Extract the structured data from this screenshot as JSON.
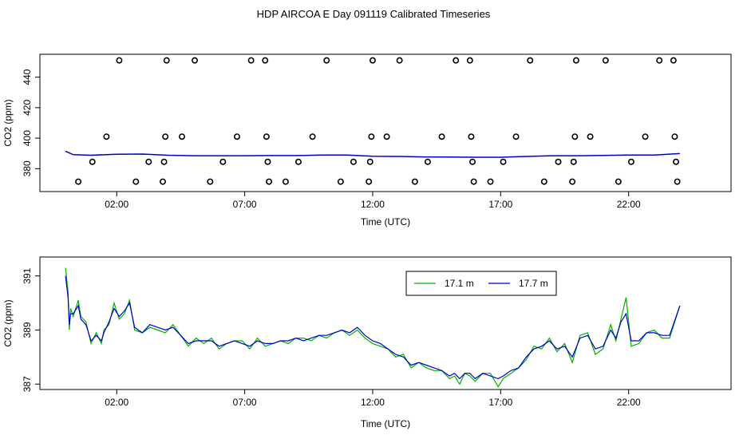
{
  "title": "HDP AIRCOA E  Day 091119  Calibrated Timeseries",
  "panels": {
    "top": {
      "xlabel": "Time (UTC)",
      "ylabel": "CO2 (ppm)",
      "x_ticks": [
        "02:00",
        "07:00",
        "12:00",
        "17:00",
        "22:00"
      ],
      "y_ticks": [
        "380",
        "400",
        "420",
        "440"
      ]
    },
    "bottom": {
      "xlabel": "Time (UTC)",
      "ylabel": "CO2 (ppm)",
      "x_ticks": [
        "02:00",
        "07:00",
        "12:00",
        "17:00",
        "22:00"
      ],
      "y_ticks": [
        "387",
        "389",
        "391"
      ],
      "legend": [
        "17.1 m",
        "17.7 m"
      ]
    }
  },
  "colors": {
    "series_17_1": "#00b000",
    "series_17_7": "#0000cc",
    "axis": "#000000"
  },
  "chart_data": [
    {
      "type": "scatter",
      "title": "HDP AIRCOA E  Day 091119  Calibrated Timeseries",
      "xlabel": "Time (UTC)",
      "ylabel": "CO2 (ppm)",
      "x_unit": "hours UTC",
      "xlim": [
        -1.0,
        26.0
      ],
      "ylim": [
        365,
        455
      ],
      "series": [
        {
          "role": "calibration-points",
          "marker": "circle",
          "points": [
            [
              0.5,
              371.5
            ],
            [
              1.05,
              384.5
            ],
            [
              1.6,
              401.0
            ],
            [
              2.1,
              451.0
            ],
            [
              2.75,
              371.5
            ],
            [
              3.25,
              384.5
            ],
            [
              3.8,
              371.5
            ],
            [
              3.85,
              384.5
            ],
            [
              3.9,
              401.0
            ],
            [
              3.95,
              451.0
            ],
            [
              4.55,
              401.0
            ],
            [
              5.05,
              451.0
            ],
            [
              5.65,
              371.5
            ],
            [
              6.15,
              384.5
            ],
            [
              6.7,
              401.0
            ],
            [
              7.25,
              451.0
            ],
            [
              7.8,
              451.0
            ],
            [
              7.85,
              401.0
            ],
            [
              7.9,
              384.5
            ],
            [
              7.95,
              371.5
            ],
            [
              8.6,
              371.5
            ],
            [
              9.1,
              384.5
            ],
            [
              9.65,
              401.0
            ],
            [
              10.2,
              451.0
            ],
            [
              10.75,
              371.5
            ],
            [
              11.25,
              384.5
            ],
            [
              11.85,
              371.5
            ],
            [
              11.9,
              384.5
            ],
            [
              11.95,
              401.0
            ],
            [
              12.0,
              451.0
            ],
            [
              12.55,
              401.0
            ],
            [
              13.05,
              451.0
            ],
            [
              13.65,
              371.5
            ],
            [
              14.15,
              384.5
            ],
            [
              14.7,
              401.0
            ],
            [
              15.25,
              451.0
            ],
            [
              15.8,
              451.0
            ],
            [
              15.85,
              401.0
            ],
            [
              15.9,
              384.5
            ],
            [
              15.95,
              371.5
            ],
            [
              16.6,
              371.5
            ],
            [
              17.1,
              384.5
            ],
            [
              17.6,
              401.0
            ],
            [
              18.15,
              451.0
            ],
            [
              18.7,
              371.5
            ],
            [
              19.25,
              384.5
            ],
            [
              19.8,
              371.5
            ],
            [
              19.85,
              384.5
            ],
            [
              19.9,
              401.0
            ],
            [
              19.95,
              451.0
            ],
            [
              20.5,
              401.0
            ],
            [
              21.1,
              451.0
            ],
            [
              21.6,
              371.5
            ],
            [
              22.1,
              384.5
            ],
            [
              22.65,
              401.0
            ],
            [
              23.2,
              451.0
            ],
            [
              23.75,
              451.0
            ],
            [
              23.8,
              401.0
            ],
            [
              23.85,
              384.5
            ],
            [
              23.9,
              371.5
            ]
          ]
        },
        {
          "role": "ambient-line",
          "x": [
            0,
            0.3,
            1,
            2,
            3,
            4,
            5,
            6,
            7,
            8,
            9,
            10,
            11,
            12,
            13,
            14,
            15,
            16,
            17,
            18,
            19,
            20,
            21,
            22,
            23,
            24
          ],
          "values": [
            391.5,
            389.2,
            388.8,
            389.5,
            389.6,
            388.8,
            388.5,
            388.5,
            388.5,
            388.6,
            388.6,
            388.9,
            388.9,
            388.2,
            388.0,
            387.7,
            387.6,
            387.5,
            387.5,
            388.0,
            388.5,
            388.5,
            388.7,
            388.9,
            388.9,
            389.9
          ]
        }
      ]
    },
    {
      "type": "line",
      "xlabel": "Time (UTC)",
      "ylabel": "CO2 (ppm)",
      "x_unit": "hours UTC",
      "xlim": [
        -1.0,
        26.0
      ],
      "ylim": [
        386.8,
        391.7
      ],
      "legend_position": "top-right",
      "series": [
        {
          "name": "17.1 m",
          "x": [
            0,
            0.1,
            0.15,
            0.2,
            0.3,
            0.5,
            0.6,
            0.8,
            1.0,
            1.2,
            1.4,
            1.5,
            1.7,
            1.9,
            2.1,
            2.3,
            2.5,
            2.7,
            3.0,
            3.3,
            3.6,
            3.9,
            4.2,
            4.5,
            4.8,
            5.1,
            5.4,
            5.7,
            6.0,
            6.3,
            6.6,
            6.9,
            7.2,
            7.5,
            7.8,
            8.1,
            8.4,
            8.7,
            9.0,
            9.3,
            9.6,
            9.9,
            10.2,
            10.5,
            10.8,
            11.1,
            11.4,
            11.7,
            12.0,
            12.3,
            12.6,
            12.9,
            13.2,
            13.5,
            13.8,
            14.1,
            14.4,
            14.7,
            15.0,
            15.2,
            15.4,
            15.6,
            15.8,
            16.0,
            16.3,
            16.6,
            16.9,
            17.1,
            17.4,
            17.7,
            18.0,
            18.3,
            18.6,
            18.9,
            19.2,
            19.5,
            19.8,
            20.1,
            20.4,
            20.7,
            21.0,
            21.3,
            21.5,
            21.7,
            21.9,
            22.1,
            22.4,
            22.7,
            23.0,
            23.3,
            23.6,
            24.0
          ],
          "values": [
            391.3,
            390.4,
            389.0,
            389.8,
            389.5,
            390.1,
            389.5,
            389.3,
            388.5,
            388.9,
            388.5,
            389.0,
            389.2,
            390.0,
            389.4,
            389.6,
            390.1,
            389.0,
            388.9,
            389.1,
            389.0,
            388.9,
            389.2,
            388.8,
            388.4,
            388.7,
            388.5,
            388.7,
            388.3,
            388.5,
            388.6,
            388.6,
            388.3,
            388.7,
            388.4,
            388.5,
            388.6,
            388.5,
            388.7,
            388.7,
            388.6,
            388.8,
            388.7,
            388.9,
            389.0,
            388.8,
            389.0,
            388.7,
            388.5,
            388.4,
            388.3,
            388.0,
            388.1,
            387.6,
            387.8,
            387.6,
            387.5,
            387.5,
            387.2,
            387.3,
            387.0,
            387.4,
            387.3,
            387.1,
            387.4,
            387.4,
            386.9,
            387.2,
            387.4,
            387.6,
            387.9,
            388.4,
            388.3,
            388.7,
            388.2,
            388.5,
            387.8,
            388.8,
            388.9,
            388.1,
            388.3,
            389.2,
            388.6,
            389.4,
            390.2,
            388.4,
            388.5,
            388.9,
            389.0,
            388.7,
            388.7,
            389.9
          ]
        },
        {
          "name": "17.7 m",
          "x": [
            0,
            0.1,
            0.15,
            0.2,
            0.3,
            0.5,
            0.6,
            0.8,
            1.0,
            1.2,
            1.4,
            1.5,
            1.7,
            1.9,
            2.1,
            2.3,
            2.5,
            2.7,
            3.0,
            3.3,
            3.6,
            3.9,
            4.2,
            4.5,
            4.8,
            5.1,
            5.4,
            5.7,
            6.0,
            6.3,
            6.6,
            6.9,
            7.2,
            7.5,
            7.8,
            8.1,
            8.4,
            8.7,
            9.0,
            9.3,
            9.6,
            9.9,
            10.2,
            10.5,
            10.8,
            11.1,
            11.4,
            11.7,
            12.0,
            12.3,
            12.6,
            12.9,
            13.2,
            13.5,
            13.8,
            14.1,
            14.4,
            14.7,
            15.0,
            15.2,
            15.4,
            15.6,
            15.8,
            16.0,
            16.3,
            16.6,
            16.9,
            17.1,
            17.4,
            17.7,
            18.0,
            18.3,
            18.6,
            18.9,
            19.2,
            19.5,
            19.8,
            20.1,
            20.4,
            20.7,
            21.0,
            21.3,
            21.5,
            21.7,
            21.9,
            22.1,
            22.4,
            22.7,
            23.0,
            23.3,
            23.6,
            24.0
          ],
          "values": [
            391.0,
            390.2,
            389.2,
            389.6,
            389.6,
            389.9,
            389.4,
            389.2,
            388.6,
            388.8,
            388.6,
            388.9,
            389.3,
            389.8,
            389.5,
            389.7,
            390.0,
            389.1,
            388.9,
            389.2,
            389.1,
            389.0,
            389.1,
            388.8,
            388.5,
            388.6,
            388.6,
            388.6,
            388.4,
            388.5,
            388.6,
            388.5,
            388.4,
            388.6,
            388.5,
            388.5,
            388.6,
            388.6,
            388.7,
            388.6,
            388.7,
            388.8,
            388.8,
            388.9,
            389.0,
            388.9,
            389.1,
            388.8,
            388.6,
            388.5,
            388.3,
            388.1,
            388.0,
            387.7,
            387.8,
            387.7,
            387.6,
            387.5,
            387.3,
            387.4,
            387.2,
            387.4,
            387.4,
            387.2,
            387.4,
            387.3,
            387.2,
            387.3,
            387.5,
            387.6,
            388.0,
            388.3,
            388.4,
            388.6,
            388.3,
            388.4,
            388.0,
            388.7,
            388.8,
            388.3,
            388.4,
            389.0,
            388.7,
            389.3,
            389.6,
            388.6,
            388.6,
            388.9,
            388.9,
            388.8,
            388.8,
            389.9
          ]
        }
      ]
    }
  ]
}
